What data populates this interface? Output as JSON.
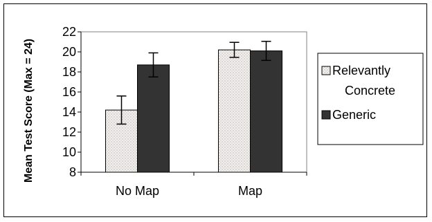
{
  "chart_data": {
    "type": "bar",
    "categories": [
      "No Map",
      "Map"
    ],
    "series": [
      {
        "name": "Relevantly Concrete",
        "values": [
          14.2,
          20.2
        ],
        "error": [
          1.4,
          0.75
        ],
        "color": "#ece9e6",
        "pattern": "dotted"
      },
      {
        "name": "Generic",
        "values": [
          18.7,
          20.1
        ],
        "error": [
          1.2,
          0.95
        ],
        "color": "#333333"
      }
    ],
    "ylabel": "Mean Test Score (Max = 24)",
    "ylim": [
      8,
      22
    ],
    "yticks": [
      8,
      10,
      12,
      14,
      16,
      18,
      20,
      22
    ],
    "grid": false,
    "legend": "right"
  },
  "legend": {
    "line1": "Relevantly",
    "line2": "Concrete",
    "line3": "Generic"
  }
}
